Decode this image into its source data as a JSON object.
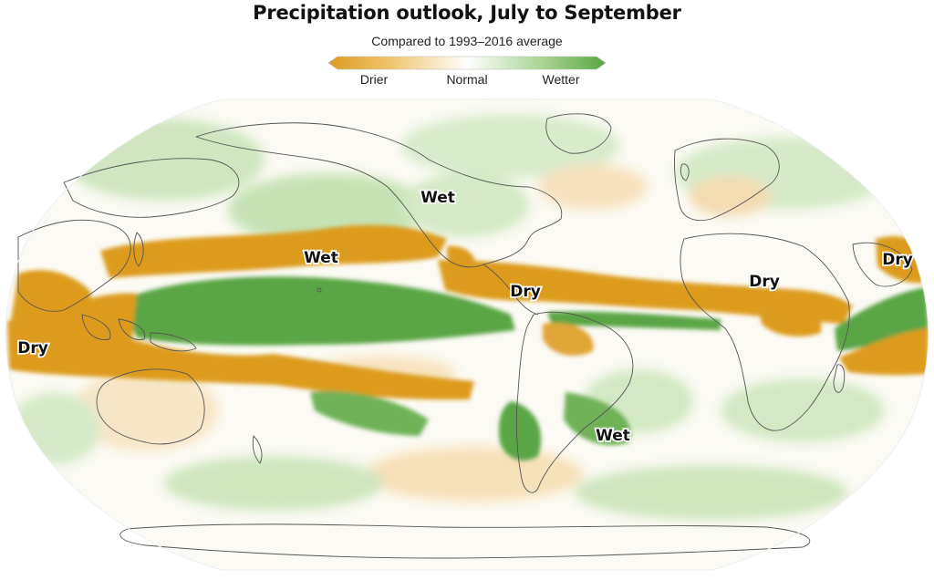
{
  "header": {
    "title": "Precipitation outlook, July to September",
    "subtitle": "Compared to 1993–2016 average"
  },
  "legend": {
    "labels": {
      "drier": "Drier",
      "normal": "Normal",
      "wetter": "Wetter"
    },
    "colors": {
      "dry": "#dc9b1e",
      "normal": "#ffffff",
      "wet": "#5aa544"
    }
  },
  "map": {
    "projection": "Robinson",
    "colors": {
      "dry_strong": "#dc9b1e",
      "dry_light": "#f4d69e",
      "wet_strong": "#5aa544",
      "wet_light": "#c8e3b7",
      "coastline": "#555555"
    },
    "labels": {
      "wet_north_america": "Wet",
      "wet_north_pacific": "Wet",
      "wet_south_america": "Wet",
      "dry_indian_ocean_west": "Dry",
      "dry_caribbean": "Dry",
      "dry_africa": "Dry",
      "dry_arabia": "Dry"
    }
  }
}
